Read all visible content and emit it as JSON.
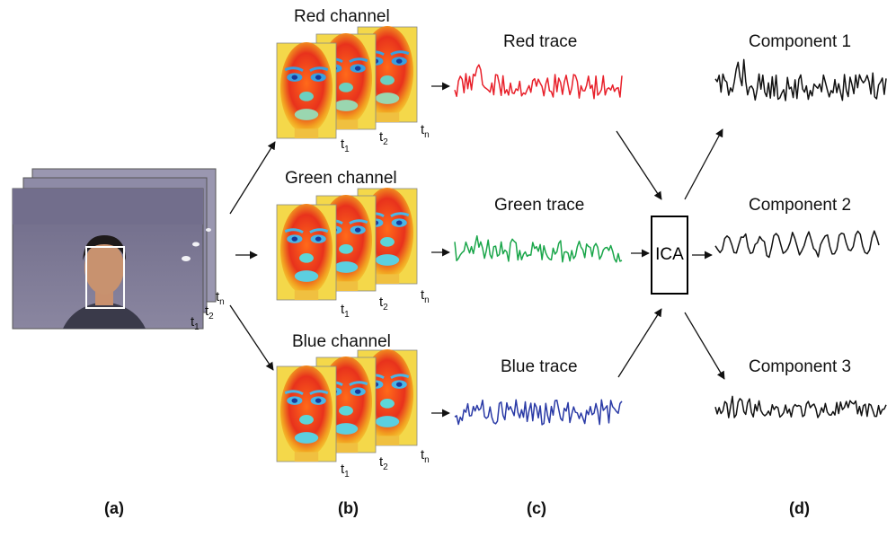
{
  "panels": {
    "a": "(a)",
    "b": "(b)",
    "c": "(c)",
    "d": "(d)"
  },
  "channels": {
    "red": "Red channel",
    "green": "Green channel",
    "blue": "Blue channel"
  },
  "traces": {
    "red": "Red trace",
    "green": "Green trace",
    "blue": "Blue trace"
  },
  "ica": "ICA",
  "components": {
    "c1": "Component 1",
    "c2": "Component 2",
    "c3": "Component 3"
  },
  "frame_labels": {
    "t1": "t",
    "t2": "t",
    "tn": "t",
    "s1": "1",
    "s2": "2",
    "sn": "n"
  },
  "colors": {
    "red": "#e8202a",
    "green": "#1aa64a",
    "blue": "#2a3aa6",
    "black": "#111111"
  }
}
